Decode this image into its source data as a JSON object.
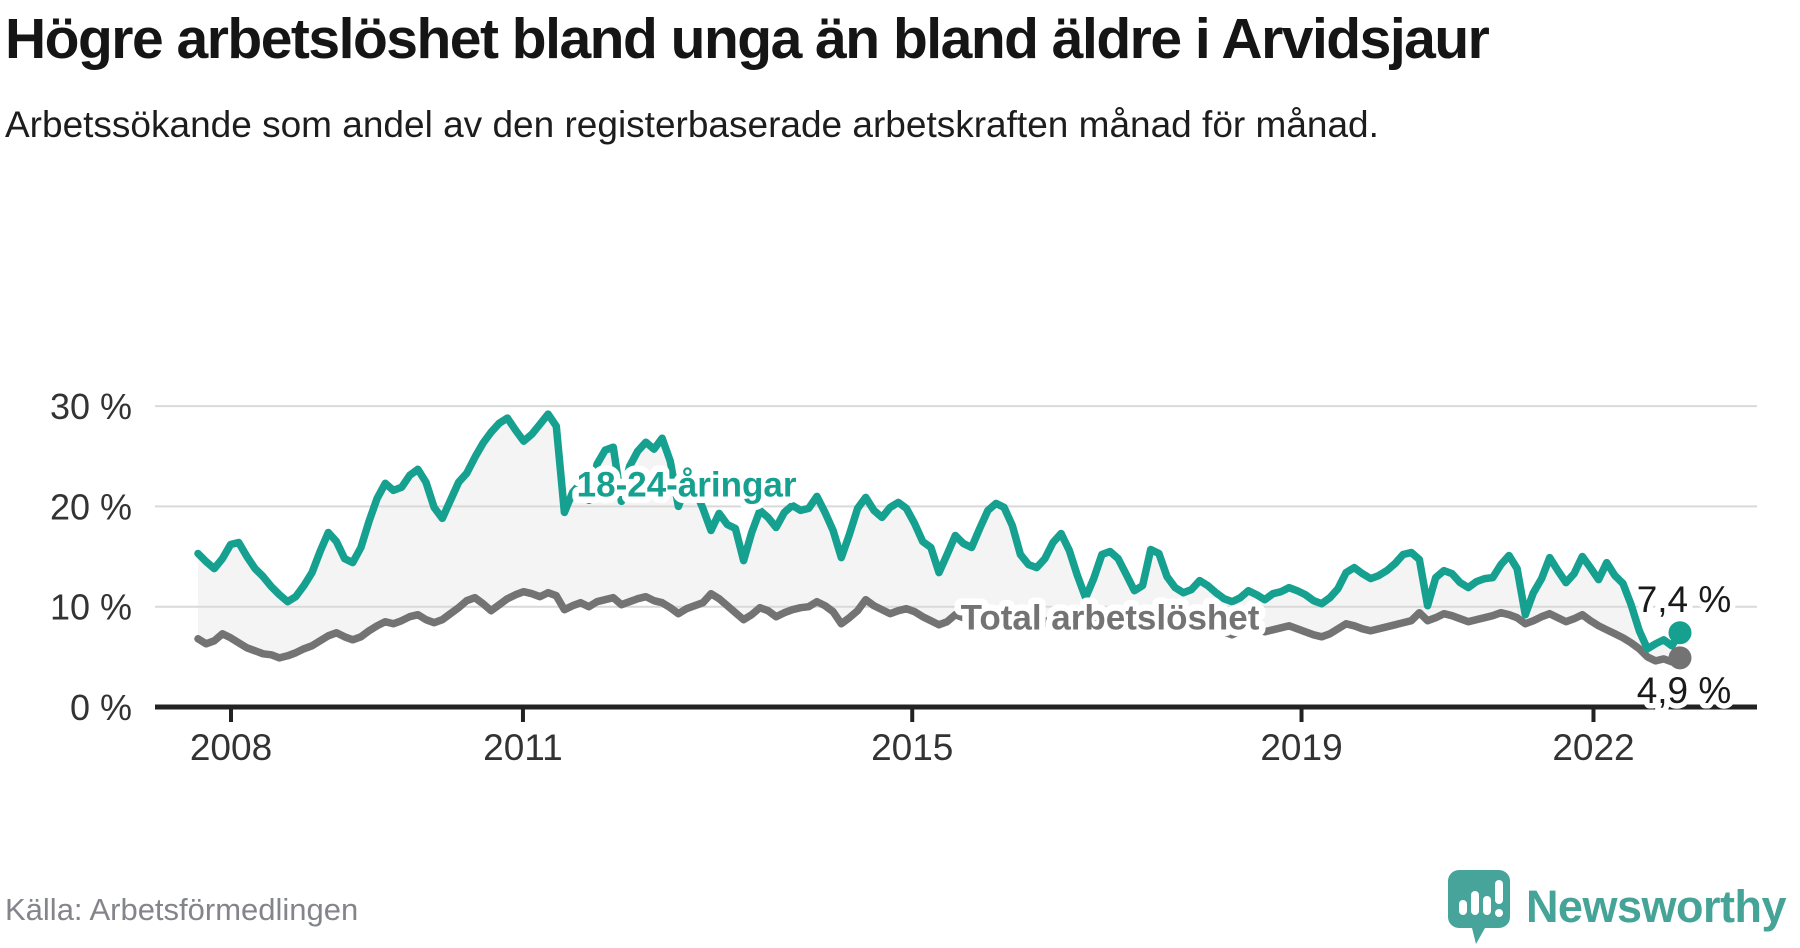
{
  "header": {
    "title": "Högre arbetslöshet bland unga än bland äldre i Arvidsjaur",
    "subtitle": "Arbetssökande som andel av den registerbaserade arbetskraften månad för månad."
  },
  "footer": {
    "source": "Källa: Arbetsförmedlingen",
    "brand": "Newsworthy"
  },
  "colors": {
    "accent_teal": "#16a08f",
    "line_gray": "#737373",
    "band_fill": "#f4f4f4",
    "grid": "#d9d9d9",
    "axis": "#222222",
    "value_label": "#1a1a1a",
    "tick_label": "#333333",
    "brand_teal": "#47a49a"
  },
  "chart_data": {
    "type": "line",
    "unit": "%",
    "frequency": "monthly",
    "x_start": "2007-10",
    "x_end": "2022-12",
    "x_tick_years": [
      2008,
      2011,
      2015,
      2019,
      2022
    ],
    "y_ticks": [
      0,
      10,
      20,
      30
    ],
    "y_tick_suffix": " %",
    "ylim": [
      0,
      31
    ],
    "grid": true,
    "band_between_series": true,
    "series": [
      {
        "name": "18-24-åringar",
        "color": "#16a08f",
        "end_label": "7,4 %",
        "last_value": 7.4,
        "values": [
          15.3,
          14.5,
          13.8,
          14.8,
          16.2,
          16.4,
          15.0,
          13.8,
          13.0,
          12.0,
          11.2,
          10.5,
          11.0,
          12.1,
          13.4,
          15.5,
          17.4,
          16.5,
          14.8,
          14.4,
          15.9,
          18.5,
          20.8,
          22.3,
          21.6,
          21.9,
          23.1,
          23.7,
          22.4,
          19.9,
          18.8,
          20.6,
          22.4,
          23.3,
          24.9,
          26.3,
          27.4,
          28.3,
          28.8,
          27.6,
          26.5,
          27.2,
          28.2,
          29.2,
          28.0,
          19.4,
          21.4,
          22.3,
          20.6,
          24.2,
          25.6,
          25.9,
          20.5,
          24.0,
          25.5,
          26.4,
          25.7,
          26.8,
          24.5,
          20.0,
          22.1,
          21.7,
          19.8,
          17.6,
          19.3,
          18.2,
          17.8,
          14.6,
          17.4,
          19.6,
          18.9,
          17.9,
          19.4,
          20.1,
          19.6,
          19.8,
          21.0,
          19.4,
          17.6,
          14.9,
          17.2,
          19.8,
          20.9,
          19.6,
          18.9,
          19.9,
          20.4,
          19.8,
          18.3,
          16.5,
          15.9,
          13.4,
          15.2,
          17.1,
          16.3,
          15.9,
          17.8,
          19.6,
          20.3,
          19.9,
          18.1,
          15.2,
          14.2,
          13.9,
          14.8,
          16.4,
          17.3,
          15.6,
          13.1,
          10.9,
          12.8,
          15.2,
          15.5,
          14.8,
          13.2,
          11.6,
          12.1,
          15.7,
          15.3,
          13.0,
          11.9,
          11.4,
          11.7,
          12.6,
          12.1,
          11.4,
          10.8,
          10.5,
          10.9,
          11.6,
          11.2,
          10.7,
          11.3,
          11.5,
          11.9,
          11.6,
          11.2,
          10.6,
          10.3,
          10.9,
          11.8,
          13.4,
          13.9,
          13.3,
          12.8,
          13.1,
          13.6,
          14.3,
          15.2,
          15.4,
          14.7,
          10.1,
          12.9,
          13.6,
          13.3,
          12.4,
          11.9,
          12.5,
          12.8,
          12.9,
          14.2,
          15.1,
          13.8,
          9.2,
          11.4,
          12.8,
          14.9,
          13.6,
          12.4,
          13.3,
          15.0,
          13.9,
          12.7,
          14.4,
          13.1,
          12.3,
          10.2,
          7.6,
          5.8,
          6.3,
          6.7,
          6.1,
          7.4
        ]
      },
      {
        "name": "Total arbetslöshet",
        "color": "#737373",
        "end_label": "4,9 %",
        "last_value": 4.9,
        "values": [
          6.8,
          6.3,
          6.6,
          7.3,
          6.9,
          6.4,
          5.9,
          5.6,
          5.3,
          5.2,
          4.9,
          5.1,
          5.4,
          5.8,
          6.1,
          6.6,
          7.1,
          7.4,
          7.0,
          6.7,
          7.0,
          7.6,
          8.1,
          8.5,
          8.3,
          8.6,
          9.0,
          9.2,
          8.7,
          8.4,
          8.7,
          9.3,
          9.9,
          10.6,
          10.9,
          10.3,
          9.6,
          10.2,
          10.8,
          11.2,
          11.5,
          11.3,
          11.0,
          11.4,
          11.1,
          9.7,
          10.1,
          10.4,
          10.0,
          10.5,
          10.7,
          10.9,
          10.2,
          10.5,
          10.8,
          11.0,
          10.6,
          10.4,
          9.9,
          9.3,
          9.8,
          10.1,
          10.4,
          11.3,
          10.8,
          10.1,
          9.4,
          8.7,
          9.2,
          9.9,
          9.6,
          9.0,
          9.4,
          9.7,
          9.9,
          10.0,
          10.5,
          10.1,
          9.5,
          8.3,
          8.9,
          9.6,
          10.7,
          10.1,
          9.7,
          9.3,
          9.6,
          9.8,
          9.5,
          9.0,
          8.6,
          8.2,
          8.5,
          9.2,
          8.9,
          8.5,
          8.8,
          9.1,
          9.3,
          9.5,
          9.1,
          8.6,
          8.2,
          8.0,
          8.4,
          9.0,
          9.3,
          8.8,
          8.3,
          7.9,
          8.2,
          8.9,
          9.2,
          8.8,
          8.3,
          7.9,
          8.4,
          9.4,
          9.1,
          8.6,
          8.2,
          7.9,
          8.1,
          8.4,
          8.1,
          7.8,
          7.5,
          7.2,
          7.6,
          8.2,
          7.9,
          7.5,
          7.7,
          7.9,
          8.1,
          7.8,
          7.5,
          7.2,
          7.0,
          7.3,
          7.8,
          8.3,
          8.1,
          7.8,
          7.6,
          7.8,
          8.0,
          8.2,
          8.4,
          8.6,
          9.4,
          8.6,
          8.9,
          9.3,
          9.1,
          8.8,
          8.5,
          8.7,
          8.9,
          9.1,
          9.4,
          9.2,
          8.9,
          8.3,
          8.6,
          9.0,
          9.3,
          8.9,
          8.5,
          8.8,
          9.2,
          8.6,
          8.1,
          7.7,
          7.3,
          6.9,
          6.4,
          5.8,
          5.0,
          4.6,
          4.8,
          4.5,
          4.9
        ]
      }
    ],
    "annotations": [
      {
        "text": "18-24-åringar",
        "series": 0,
        "month_index": 60,
        "value": 22.2
      },
      {
        "text": "Total arbetslöshet",
        "series": 1,
        "month_index": 112,
        "value": 8.9
      }
    ]
  }
}
